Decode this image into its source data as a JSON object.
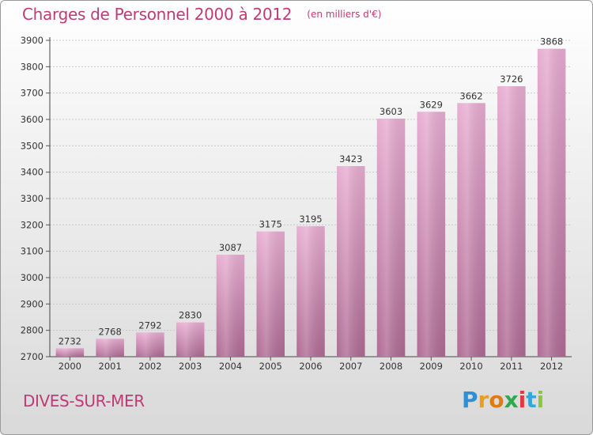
{
  "header": {
    "title": "Charges de Personnel 2000 à 2012",
    "subtitle": "(en milliers d'€)"
  },
  "city": "DIVES-SUR-MER",
  "logo": {
    "text": "Proxiti"
  },
  "colors": {
    "bar_light": "#e8aed2",
    "bar_dark": "#b06b94",
    "title": "#c03a78",
    "grid": "#c8c8c8"
  },
  "chart_data": {
    "type": "bar",
    "title": "Charges de Personnel 2000 à 2012",
    "subtitle": "(en milliers d'€)",
    "xlabel": "",
    "ylabel": "",
    "categories": [
      "2000",
      "2001",
      "2002",
      "2003",
      "2004",
      "2005",
      "2006",
      "2007",
      "2008",
      "2009",
      "2010",
      "2011",
      "2012"
    ],
    "values": [
      2732,
      2768,
      2792,
      2830,
      3087,
      3175,
      3195,
      3423,
      3603,
      3629,
      3662,
      3726,
      3868
    ],
    "ylim": [
      2700,
      3900
    ],
    "yticks": [
      2700,
      2800,
      2900,
      3000,
      3100,
      3200,
      3300,
      3400,
      3500,
      3600,
      3700,
      3800,
      3900
    ],
    "grid": true,
    "data_labels": true
  }
}
